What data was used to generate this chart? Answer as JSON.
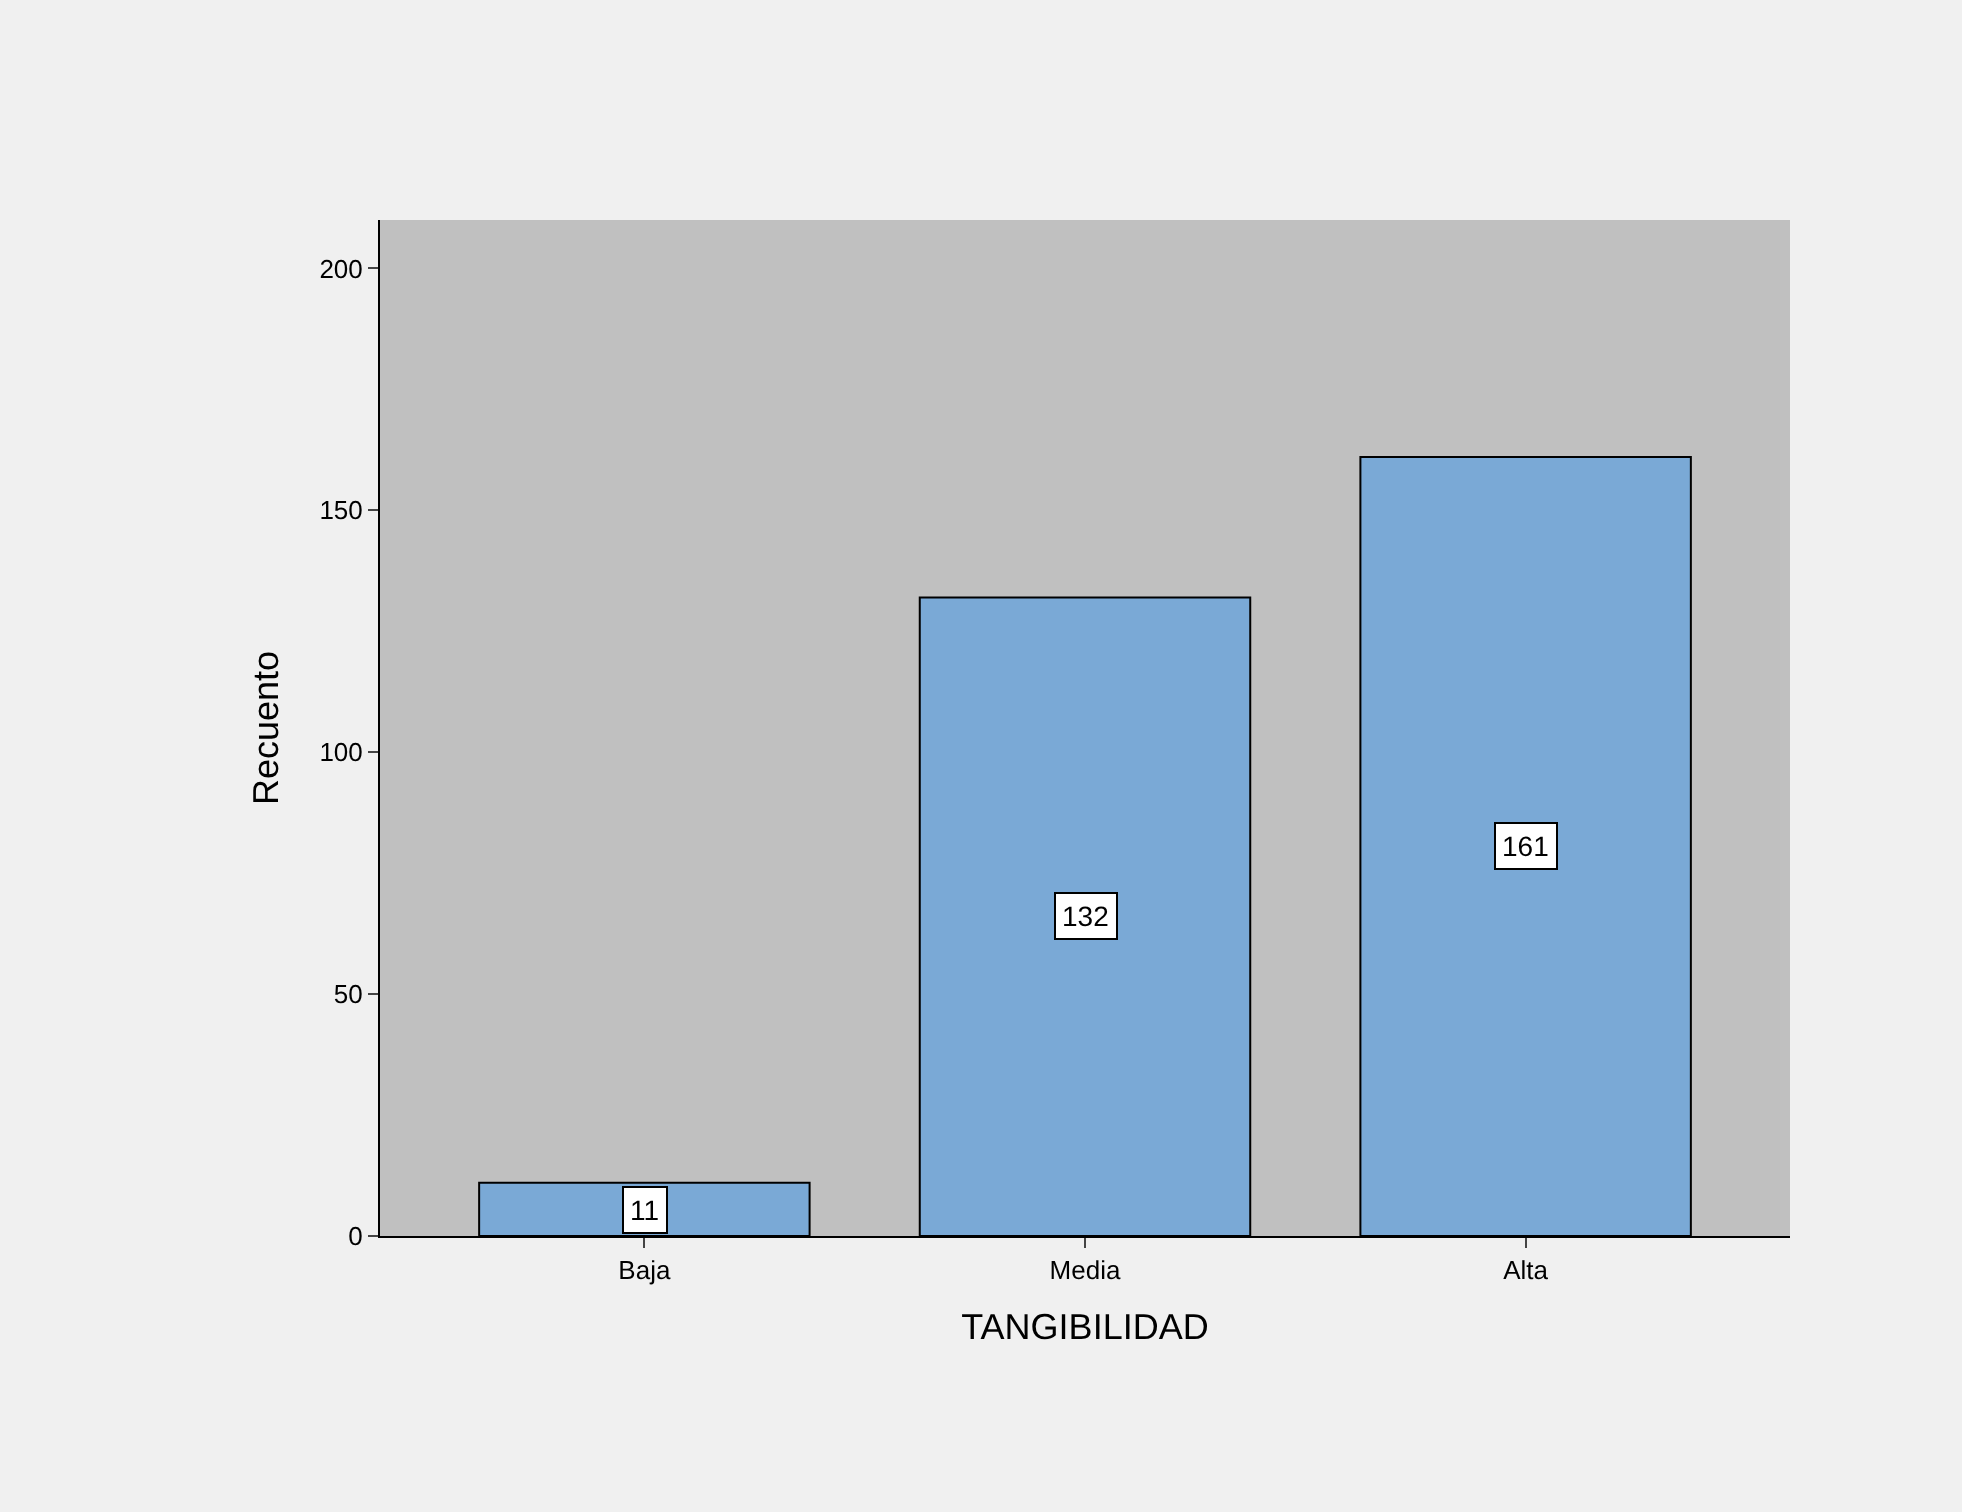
{
  "chart_data": {
    "type": "bar",
    "xlabel": "TANGIBILIDAD",
    "ylabel": "Recuento",
    "categories": [
      "Baja",
      "Media",
      "Alta"
    ],
    "values": [
      11,
      132,
      161
    ],
    "color": "#7aa9d6",
    "ylim": [
      0,
      210
    ],
    "yticks": [
      0,
      50,
      100,
      150,
      200
    ],
    "grid": false,
    "data_labels": true
  }
}
